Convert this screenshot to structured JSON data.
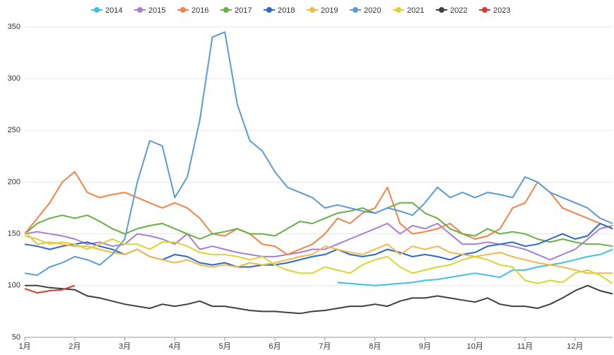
{
  "chart_data": {
    "type": "line",
    "categories": [
      "1月",
      null,
      null,
      null,
      "2月",
      null,
      null,
      null,
      "3月",
      null,
      null,
      null,
      "4月",
      null,
      null,
      null,
      "5月",
      null,
      null,
      null,
      "6月",
      null,
      null,
      null,
      "7月",
      null,
      null,
      null,
      "8月",
      null,
      null,
      null,
      "9月",
      null,
      null,
      null,
      "10月",
      null,
      null,
      null,
      "11月",
      null,
      null,
      null,
      "12月",
      null,
      null,
      null
    ],
    "ylim": [
      50,
      350
    ],
    "yticks": [
      50,
      100,
      150,
      200,
      250,
      300,
      350
    ],
    "grid": true,
    "legend": "top",
    "series": [
      {
        "name": "2014",
        "color": "#3fc1e6",
        "values": [
          null,
          null,
          null,
          null,
          null,
          null,
          null,
          null,
          null,
          null,
          null,
          null,
          null,
          null,
          null,
          null,
          null,
          null,
          null,
          null,
          null,
          null,
          null,
          null,
          null,
          103,
          102,
          101,
          100,
          101,
          102,
          103,
          105,
          106,
          108,
          110,
          112,
          110,
          108,
          115,
          115,
          118,
          120,
          122,
          125,
          128,
          130,
          135
        ]
      },
      {
        "name": "2015",
        "color": "#a67fd6",
        "values": [
          150,
          152,
          150,
          148,
          145,
          140,
          142,
          138,
          140,
          150,
          148,
          145,
          140,
          150,
          135,
          138,
          135,
          132,
          130,
          128,
          128,
          130,
          132,
          135,
          135,
          140,
          145,
          150,
          155,
          160,
          150,
          158,
          155,
          160,
          150,
          140,
          140,
          142,
          140,
          138,
          135,
          130,
          125,
          130,
          135,
          145,
          155,
          158
        ]
      },
      {
        "name": "2016",
        "color": "#f0834a",
        "values": [
          150,
          165,
          180,
          200,
          210,
          190,
          185,
          188,
          190,
          185,
          180,
          175,
          180,
          175,
          165,
          150,
          148,
          155,
          150,
          140,
          138,
          130,
          135,
          140,
          150,
          165,
          160,
          170,
          175,
          195,
          160,
          150,
          152,
          155,
          160,
          150,
          145,
          148,
          155,
          175,
          180,
          200,
          190,
          175,
          170,
          165,
          160,
          155
        ]
      },
      {
        "name": "2017",
        "color": "#6aaf45",
        "values": [
          150,
          160,
          165,
          168,
          165,
          168,
          162,
          155,
          150,
          155,
          158,
          160,
          155,
          150,
          145,
          150,
          152,
          155,
          150,
          150,
          148,
          155,
          162,
          160,
          165,
          170,
          172,
          175,
          170,
          175,
          180,
          180,
          170,
          165,
          155,
          150,
          148,
          155,
          150,
          152,
          150,
          145,
          142,
          145,
          142,
          140,
          140,
          138
        ]
      },
      {
        "name": "2018",
        "color": "#2d68c4",
        "values": [
          140,
          138,
          135,
          138,
          140,
          142,
          138,
          135,
          130,
          135,
          128,
          125,
          130,
          128,
          122,
          120,
          122,
          118,
          118,
          120,
          120,
          122,
          125,
          128,
          130,
          135,
          130,
          128,
          130,
          135,
          132,
          128,
          130,
          128,
          125,
          130,
          132,
          138,
          140,
          142,
          138,
          140,
          145,
          150,
          145,
          148,
          160,
          155
        ]
      },
      {
        "name": "2019",
        "color": "#f2b84b",
        "values": [
          152,
          140,
          142,
          140,
          138,
          138,
          135,
          132,
          130,
          135,
          128,
          125,
          122,
          125,
          120,
          118,
          120,
          118,
          122,
          120,
          122,
          125,
          128,
          130,
          138,
          135,
          132,
          130,
          135,
          140,
          130,
          138,
          135,
          138,
          132,
          130,
          128,
          130,
          132,
          128,
          125,
          122,
          120,
          118,
          115,
          112,
          112,
          112
        ]
      },
      {
        "name": "2020",
        "color": "#5b9bd5",
        "values": [
          112,
          110,
          118,
          122,
          128,
          125,
          120,
          130,
          145,
          200,
          240,
          235,
          185,
          205,
          260,
          340,
          345,
          275,
          240,
          230,
          210,
          195,
          190,
          185,
          175,
          178,
          175,
          172,
          170,
          175,
          172,
          168,
          180,
          195,
          185,
          190,
          185,
          190,
          188,
          185,
          205,
          200,
          190,
          185,
          180,
          175,
          165,
          160
        ]
      },
      {
        "name": "2021",
        "color": "#d9d532",
        "values": [
          148,
          145,
          140,
          142,
          140,
          135,
          140,
          145,
          140,
          140,
          135,
          142,
          142,
          138,
          132,
          130,
          130,
          128,
          125,
          128,
          120,
          115,
          112,
          112,
          118,
          115,
          112,
          120,
          125,
          128,
          118,
          112,
          115,
          118,
          120,
          125,
          128,
          125,
          120,
          118,
          105,
          102,
          105,
          103,
          112,
          115,
          110,
          102
        ]
      },
      {
        "name": "2022",
        "color": "#404040",
        "values": [
          100,
          100,
          98,
          97,
          96,
          90,
          88,
          85,
          82,
          80,
          78,
          82,
          80,
          82,
          85,
          80,
          80,
          78,
          76,
          75,
          75,
          74,
          73,
          75,
          76,
          78,
          80,
          80,
          82,
          80,
          85,
          88,
          88,
          90,
          88,
          86,
          84,
          88,
          82,
          80,
          80,
          78,
          82,
          88,
          95,
          100,
          95,
          92
        ]
      },
      {
        "name": "2023",
        "color": "#d63a28",
        "values": [
          97,
          93,
          95,
          96,
          100,
          null,
          null,
          null,
          null,
          null,
          null,
          null,
          null,
          null,
          null,
          null,
          null,
          null,
          null,
          null,
          null,
          null,
          null,
          null,
          null,
          null,
          null,
          null,
          null,
          null,
          null,
          null,
          null,
          null,
          null,
          null,
          null,
          null,
          null,
          null,
          null,
          null,
          null,
          null,
          null,
          null,
          null,
          null
        ]
      }
    ]
  }
}
